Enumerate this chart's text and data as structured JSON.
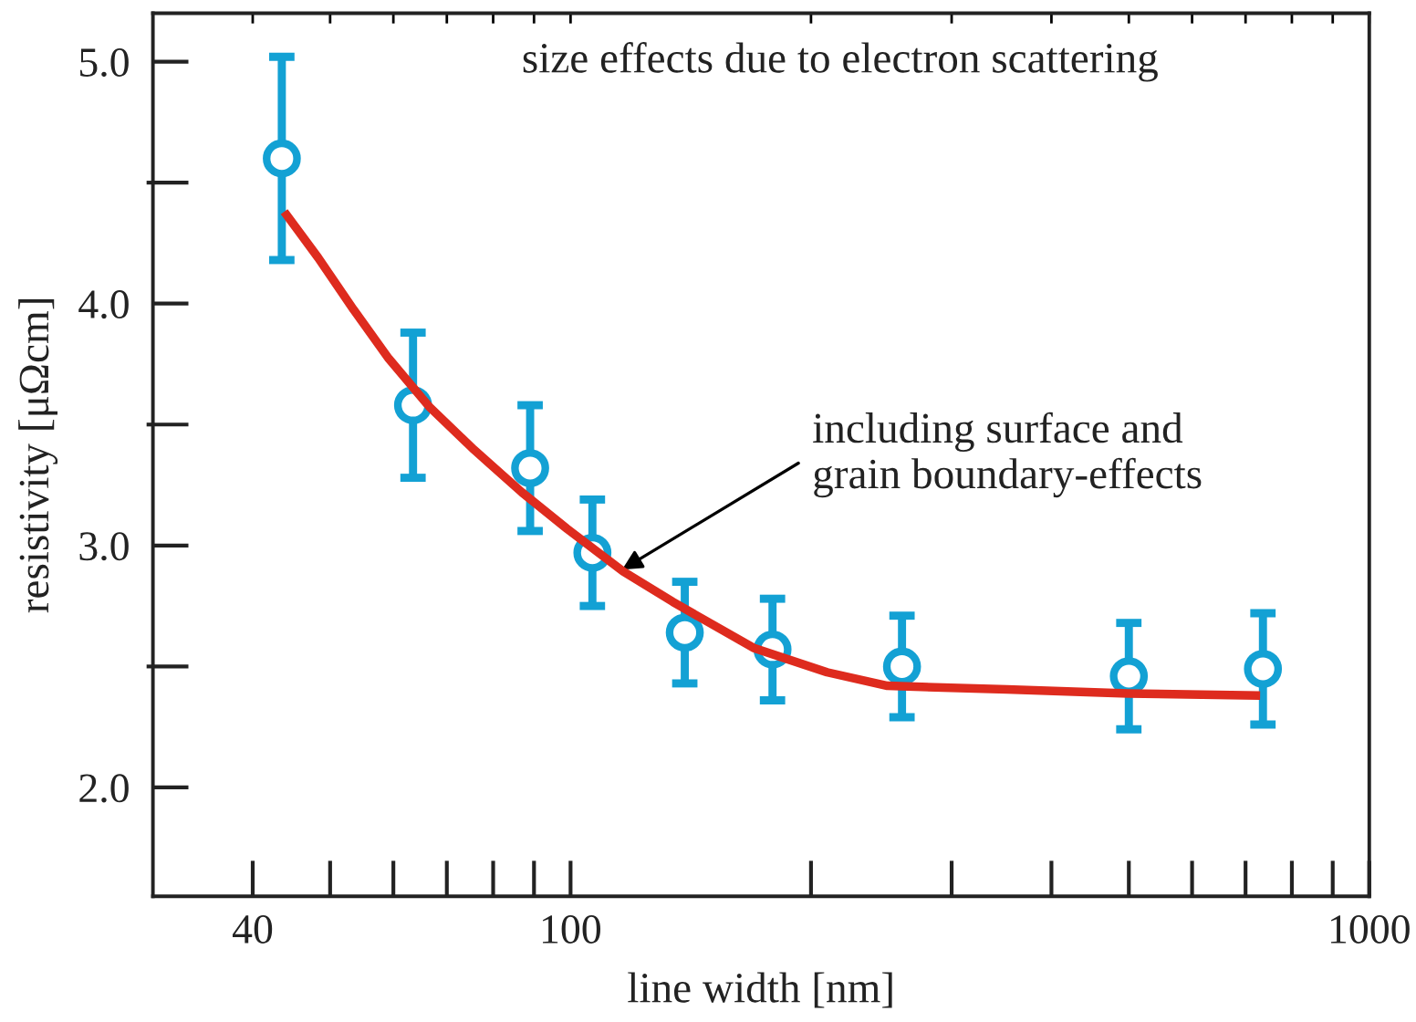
{
  "chart_data": {
    "type": "scatter",
    "xlabel": "line width [nm]",
    "ylabel": "resistivity [μΩcm]",
    "log": "x",
    "xlim": [
      30,
      1000
    ],
    "xticks": [
      40,
      {
        "value": 50,
        "label": null
      },
      {
        "value": 60,
        "label": null
      },
      {
        "value": 70,
        "label": null
      },
      {
        "value": 80,
        "label": null
      },
      {
        "value": 90,
        "label": null
      },
      100,
      {
        "value": 200,
        "label": null
      },
      {
        "value": 300,
        "label": null
      },
      {
        "value": 400,
        "label": null
      },
      {
        "value": 500,
        "label": null
      },
      {
        "value": 600,
        "label": null
      },
      {
        "value": 700,
        "label": null
      },
      {
        "value": 800,
        "label": null
      },
      {
        "value": 900,
        "label": null
      },
      1000
    ],
    "ylim": [
      1.55,
      5.2
    ],
    "yticks": [
      {
        "value": 2,
        "label": "2.0"
      },
      {
        "value": 2.5,
        "label": null
      },
      {
        "value": 3,
        "label": "3.0"
      },
      {
        "value": 3.5,
        "label": null
      },
      {
        "value": 4,
        "label": "4.0"
      },
      {
        "value": 4.5,
        "label": null
      },
      {
        "value": 5,
        "label": "5.0"
      }
    ],
    "annotations": [
      "size effects due to electron scattering",
      {
        "text": "including surface and\ngrain boundary-effects",
        "x": 116,
        "y": 2.9
      }
    ],
    "series": [
      {
        "type": "line",
        "color": "#de2b1e",
        "x": [
          43.8,
          48.3,
          53.5,
          59.2,
          66.7,
          75.7,
          86.9,
          99,
          116.4,
          134.3,
          169.4,
          209.5,
          249.3,
          352,
          499,
          730
        ],
        "values": [
          4.38,
          4.19,
          3.975,
          3.773,
          3.57,
          3.396,
          3.22,
          3.069,
          2.893,
          2.767,
          2.577,
          2.476,
          2.42,
          2.405,
          2.388,
          2.38
        ]
      },
      {
        "color": "#13a1d4",
        "marker": "circle",
        "x": [
          43.5,
          63.5,
          89,
          106.5,
          139,
          179,
          260,
          500,
          736
        ],
        "values": [
          4.6,
          3.58,
          3.32,
          2.97,
          2.64,
          2.57,
          2.5,
          2.46,
          2.49
        ],
        "errors": [
          0.42,
          0.3,
          0.26,
          0.22,
          0.21,
          0.21,
          0.21,
          0.22,
          0.23
        ]
      }
    ]
  }
}
